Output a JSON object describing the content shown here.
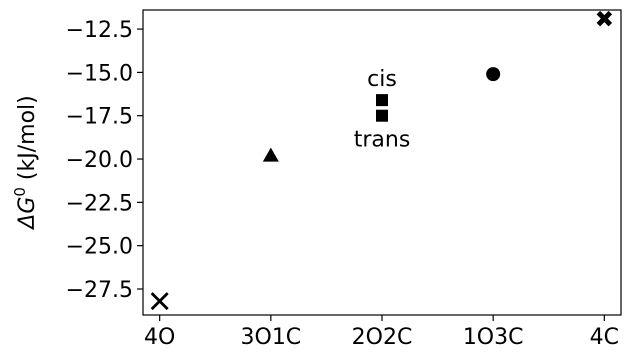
{
  "chart_data": {
    "type": "scatter",
    "ylabel_symbol": "ΔG",
    "ylabel_superscript": "0",
    "ylabel_unit": " (kJ/mol)",
    "categories": [
      "4O",
      "3O1C",
      "2O2C",
      "1O3C",
      "4C"
    ],
    "x": [
      0,
      1,
      2,
      3,
      4
    ],
    "ylim": [
      -29.0,
      -11.4
    ],
    "xlim": [
      -0.15,
      4.15
    ],
    "yticks": [
      -27.5,
      -25.0,
      -22.5,
      -20.0,
      -17.5,
      -15.0,
      -12.5
    ],
    "ytick_labels": [
      "−27.5",
      "−25.0",
      "−22.5",
      "−20.0",
      "−17.5",
      "−15.0",
      "−12.5"
    ],
    "grid": false,
    "points": [
      {
        "category": "4O",
        "x": 0,
        "y": -28.2,
        "marker": "x"
      },
      {
        "category": "3O1C",
        "x": 1,
        "y": -19.8,
        "marker": "triangle"
      },
      {
        "category": "2O2C",
        "x": 2,
        "y": -16.6,
        "marker": "square",
        "label": "cis"
      },
      {
        "category": "2O2C",
        "x": 2,
        "y": -17.5,
        "marker": "square",
        "label": "trans"
      },
      {
        "category": "1O3C",
        "x": 3,
        "y": -15.1,
        "marker": "circle"
      },
      {
        "category": "4C",
        "x": 4,
        "y": -11.9,
        "marker": "thick-x"
      }
    ]
  }
}
